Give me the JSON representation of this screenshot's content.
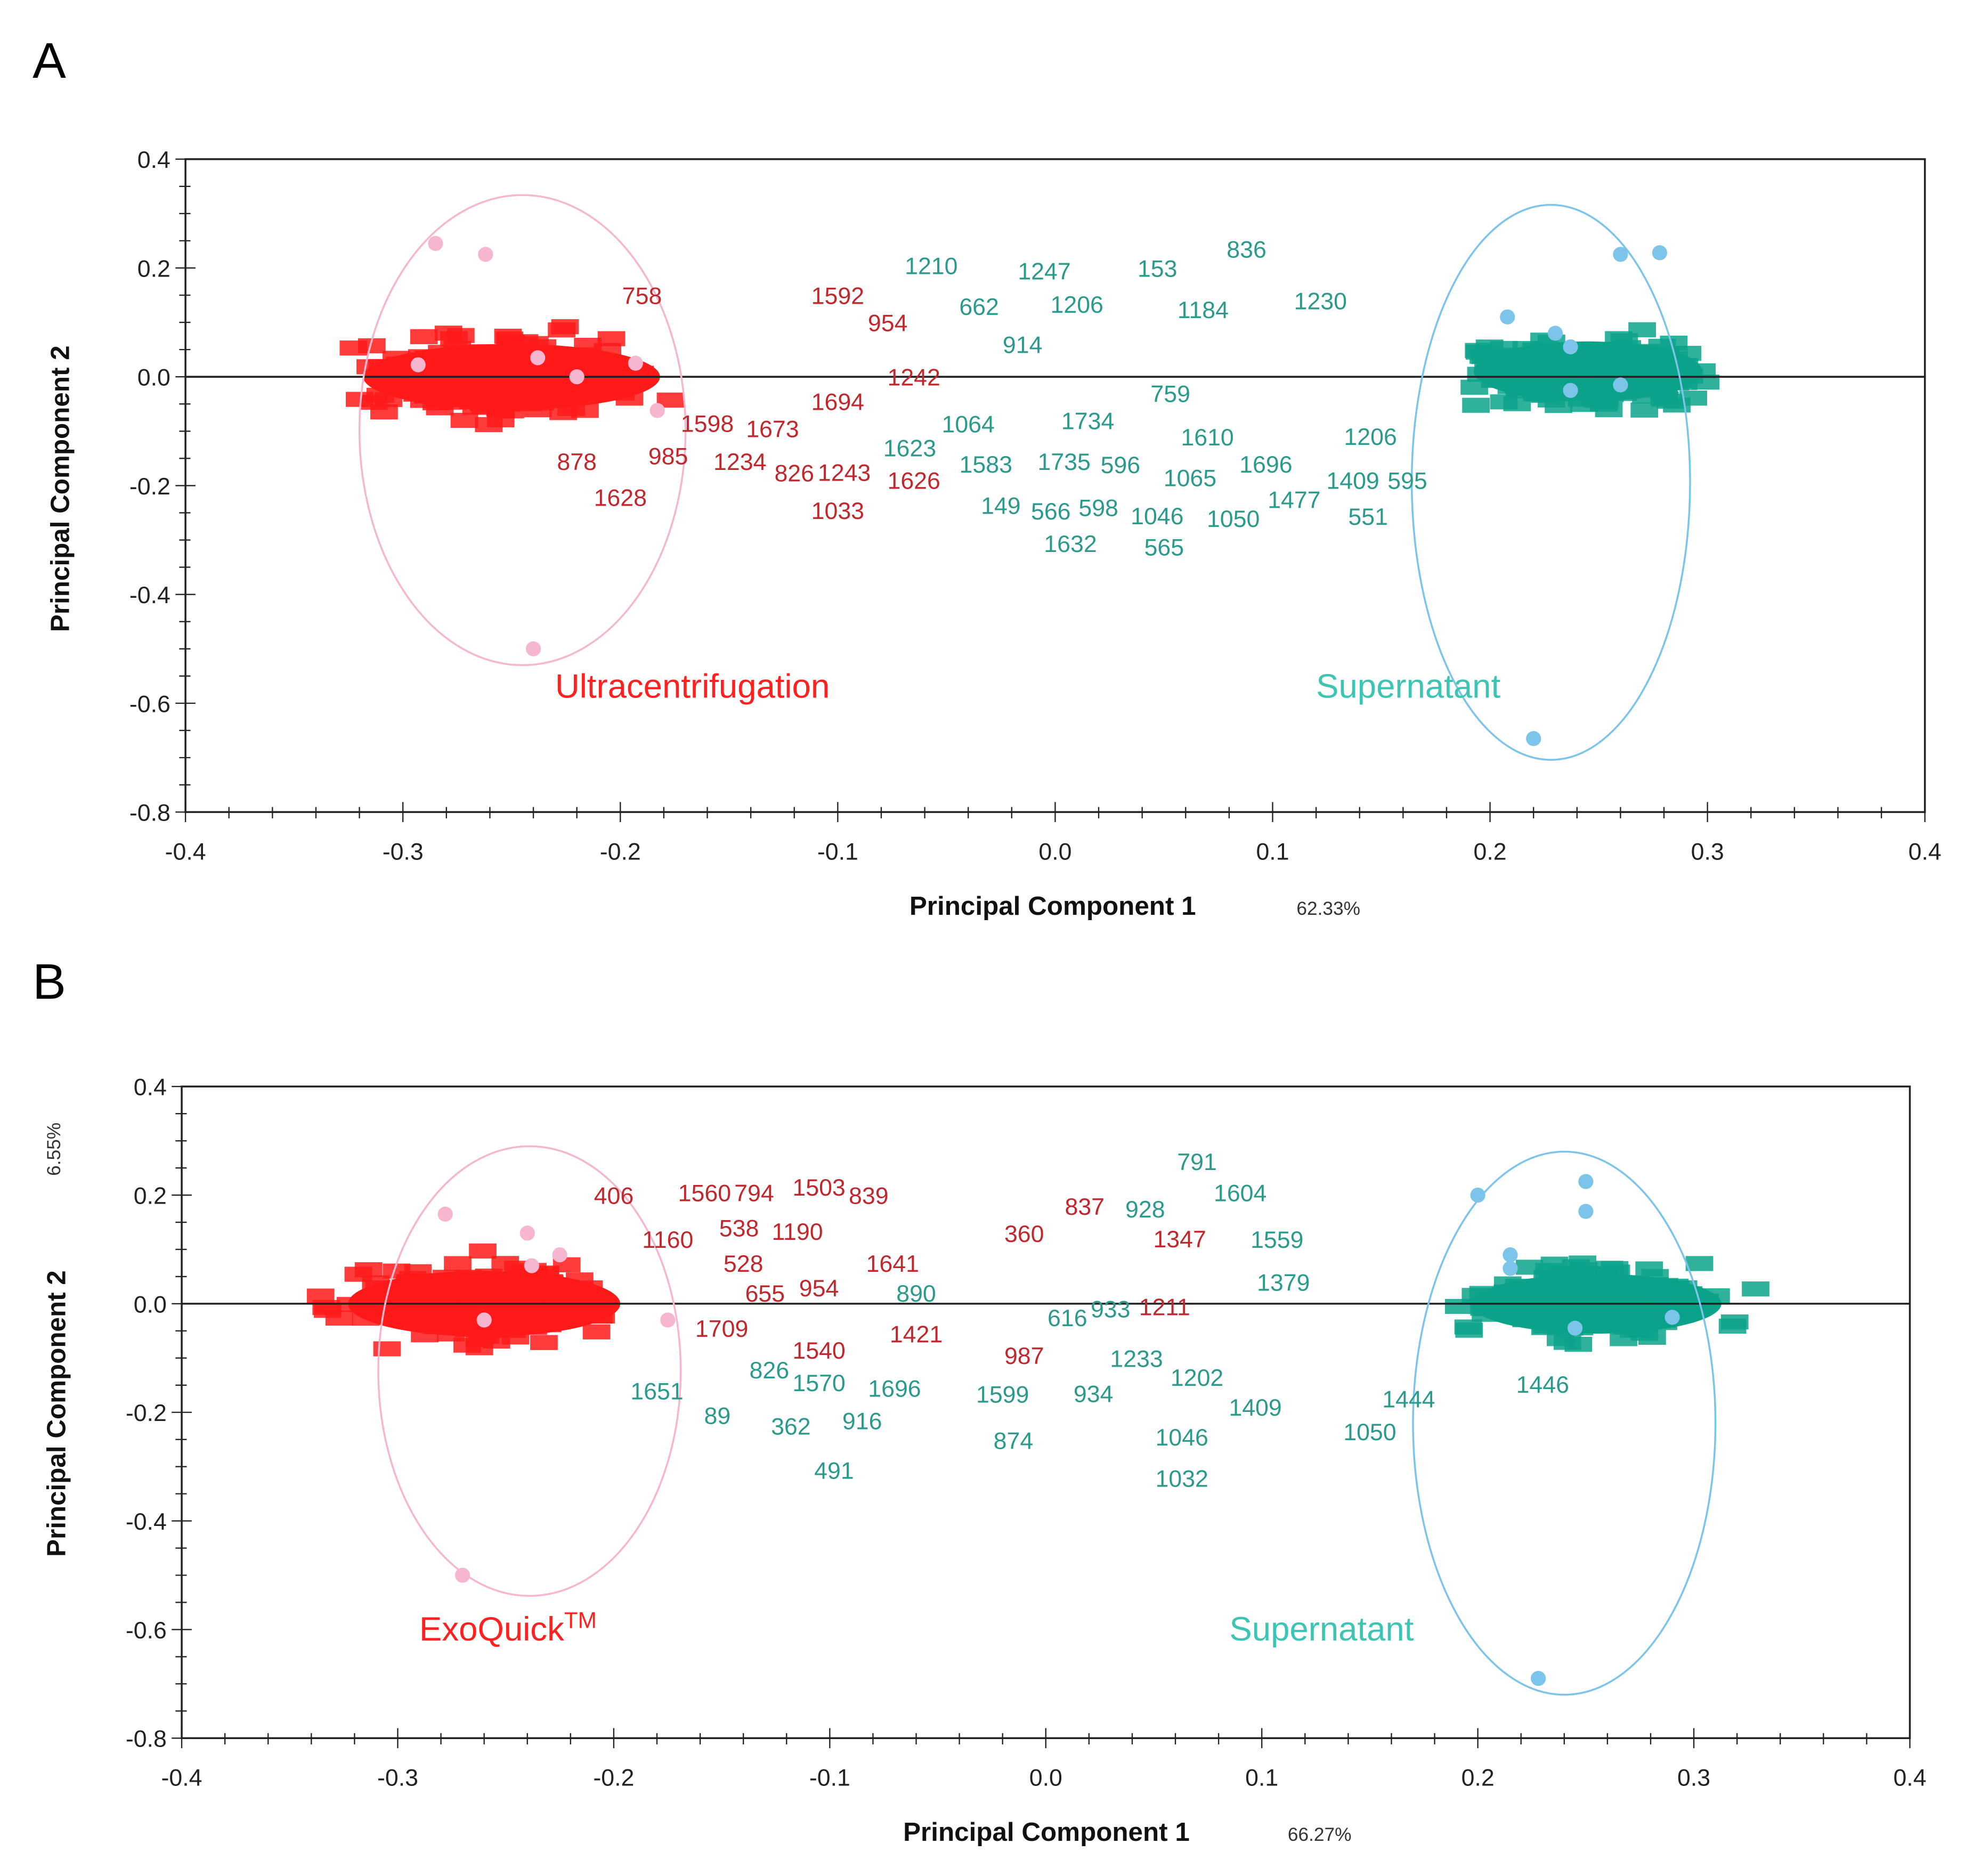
{
  "colors": {
    "red_cloud": "#ff1a1a",
    "red_label": "#c0282d",
    "teal_cloud": "#0aa38a",
    "teal_label": "#2b9a8c",
    "pink": "#f7b6cf",
    "blue": "#7cc4ea",
    "red_text": "#ff2020",
    "teal_text": "#3cc4b4"
  },
  "chart_data": [
    {
      "type": "scatter",
      "panel": "A",
      "xlabel": "Principal Component 1",
      "xlabel_pct": "62.33%",
      "ylabel": "Principal Component 2",
      "ylabel_pct": "",
      "xlim": [
        -0.4,
        0.4
      ],
      "ylim": [
        -0.8,
        0.4
      ],
      "xticks": [
        "-0.4",
        "-0.3",
        "-0.2",
        "-0.1",
        "0.0",
        "0.1",
        "0.2",
        "0.3",
        "0.4"
      ],
      "yticks": [
        "0.4",
        "0.2",
        "0.0",
        "-0.2",
        "-0.4",
        "-0.6",
        "-0.8"
      ],
      "groups": [
        {
          "name": "Ultracentrifugation",
          "color": "red",
          "cloud": {
            "cx": -0.25,
            "cy": 0.0,
            "sx": 0.065,
            "sy": 0.11
          },
          "ellipse": {
            "cx": -0.245,
            "cy": -0.098,
            "rx": 0.075,
            "ry": 0.432
          },
          "samples": [
            [
              -0.285,
              0.245
            ],
            [
              -0.262,
              0.225
            ],
            [
              -0.293,
              0.022
            ],
            [
              -0.238,
              0.035
            ],
            [
              -0.22,
              0.0
            ],
            [
              -0.193,
              0.025
            ],
            [
              -0.183,
              -0.062
            ],
            [
              -0.24,
              -0.5
            ]
          ],
          "label_pos": [
            -0.23,
            -0.59
          ]
        },
        {
          "name": "Supernatant",
          "color": "teal",
          "cloud": {
            "cx": 0.245,
            "cy": 0.01,
            "sx": 0.05,
            "sy": 0.1
          },
          "ellipse": {
            "cx": 0.228,
            "cy": -0.194,
            "rx": 0.064,
            "ry": 0.51
          },
          "samples": [
            [
              0.26,
              0.225
            ],
            [
              0.278,
              0.228
            ],
            [
              0.208,
              0.11
            ],
            [
              0.23,
              0.08
            ],
            [
              0.237,
              0.055
            ],
            [
              0.237,
              -0.025
            ],
            [
              0.26,
              -0.015
            ],
            [
              0.22,
              -0.665
            ]
          ],
          "label_pos": [
            0.12,
            -0.59
          ]
        }
      ],
      "points": [
        {
          "id": "758",
          "x": -0.19,
          "y": 0.15,
          "g": "red"
        },
        {
          "id": "1592",
          "x": -0.1,
          "y": 0.15,
          "g": "red"
        },
        {
          "id": "954",
          "x": -0.077,
          "y": 0.1,
          "g": "red"
        },
        {
          "id": "1598",
          "x": -0.16,
          "y": -0.085,
          "g": "red"
        },
        {
          "id": "1673",
          "x": -0.13,
          "y": -0.095,
          "g": "red"
        },
        {
          "id": "826",
          "x": -0.12,
          "y": -0.13,
          "g": "red"
        },
        {
          "id": "1234",
          "x": -0.145,
          "y": -0.155,
          "g": "red"
        },
        {
          "id": "985",
          "x": -0.178,
          "y": -0.145,
          "g": "red"
        },
        {
          "id": "878",
          "x": -0.22,
          "y": -0.155,
          "g": "red"
        },
        {
          "id": "1628",
          "x": -0.2,
          "y": -0.175,
          "g": "red"
        },
        {
          "id": "1243",
          "x": -0.097,
          "y": -0.175,
          "g": "red"
        },
        {
          "id": "1033",
          "x": -0.1,
          "y": -0.245,
          "g": "red"
        },
        {
          "id": "1626",
          "x": -0.065,
          "y": -0.19,
          "g": "red"
        },
        {
          "id": "1242",
          "x": -0.065,
          "y": 0.0,
          "g": "red"
        },
        {
          "id": "1694",
          "x": -0.1,
          "y": -0.045,
          "g": "red"
        },
        {
          "id": "1210",
          "x": -0.057,
          "y": 0.205,
          "g": "teal"
        },
        {
          "id": "1247",
          "x": -0.005,
          "y": 0.195,
          "g": "teal"
        },
        {
          "id": "1206",
          "x": 0.01,
          "y": 0.18,
          "g": "teal"
        },
        {
          "id": "153",
          "x": 0.047,
          "y": 0.2,
          "g": "teal"
        },
        {
          "id": "1184",
          "x": 0.068,
          "y": 0.17,
          "g": "teal"
        },
        {
          "id": "836",
          "x": 0.088,
          "y": 0.235,
          "g": "teal"
        },
        {
          "id": "662",
          "x": -0.035,
          "y": 0.13,
          "g": "teal"
        },
        {
          "id": "914",
          "x": -0.015,
          "y": 0.06,
          "g": "teal"
        },
        {
          "id": "1064",
          "x": -0.04,
          "y": -0.04,
          "g": "teal"
        },
        {
          "id": "1734",
          "x": 0.015,
          "y": -0.08,
          "g": "teal"
        },
        {
          "id": "596",
          "x": 0.03,
          "y": -0.115,
          "g": "teal"
        },
        {
          "id": "1623",
          "x": -0.045,
          "y": -0.13,
          "g": "teal"
        },
        {
          "id": "1735",
          "x": 0.026,
          "y": -0.155,
          "g": "teal"
        },
        {
          "id": "1583",
          "x": -0.01,
          "y": -0.16,
          "g": "teal"
        },
        {
          "id": "149",
          "x": -0.025,
          "y": -0.19,
          "g": "teal"
        },
        {
          "id": "566",
          "x": -0.002,
          "y": -0.2,
          "g": "teal"
        },
        {
          "id": "598",
          "x": -0.002,
          "y": -0.24,
          "g": "teal"
        },
        {
          "id": "1632",
          "x": 0.007,
          "y": -0.26,
          "g": "teal"
        },
        {
          "id": "1046",
          "x": 0.025,
          "y": -0.255,
          "g": "teal"
        },
        {
          "id": "1050",
          "x": 0.06,
          "y": -0.26,
          "g": "teal"
        },
        {
          "id": "1610",
          "x": 0.07,
          "y": -0.11,
          "g": "teal"
        },
        {
          "id": "1065",
          "x": 0.062,
          "y": -0.185,
          "g": "teal"
        },
        {
          "id": "1696",
          "x": 0.075,
          "y": -0.16,
          "g": "teal"
        },
        {
          "id": "565",
          "x": 0.072,
          "y": -0.22,
          "g": "teal"
        },
        {
          "id": "1477",
          "x": 0.088,
          "y": -0.225,
          "g": "teal"
        },
        {
          "id": "1409",
          "x": 0.115,
          "y": -0.19,
          "g": "teal"
        },
        {
          "id": "551",
          "x": 0.122,
          "y": -0.21,
          "g": "teal"
        },
        {
          "id": "595",
          "x": 0.162,
          "y": -0.19,
          "g": "teal"
        },
        {
          "id": "1206",
          "x": 0.145,
          "y": -0.155,
          "g": "teal"
        },
        {
          "id": "759",
          "x": 0.053,
          "y": -0.03,
          "g": "teal"
        },
        {
          "id": "1230",
          "x": 0.122,
          "y": 0.14,
          "g": "teal"
        }
      ]
    },
    {
      "type": "scatter",
      "panel": "B",
      "xlabel": "Principal Component 1",
      "xlabel_pct": "66.27%",
      "ylabel": "Principal Component 2",
      "ylabel_pct": "6.55%",
      "xlim": [
        -0.4,
        0.4
      ],
      "ylim": [
        -0.8,
        0.4
      ],
      "xticks": [
        "-0.4",
        "-0.3",
        "-0.2",
        "-0.1",
        "0.0",
        "0.1",
        "0.2",
        "0.3",
        "0.4"
      ],
      "yticks": [
        "0.4",
        "0.2",
        "0.0",
        "-0.2",
        "-0.4",
        "-0.6",
        "-0.8"
      ],
      "groups": [
        {
          "name": "ExoQuick",
          "name_sup": "TM",
          "color": "red",
          "cloud": {
            "cx": -0.26,
            "cy": 0.0,
            "sx": 0.06,
            "sy": 0.11
          },
          "ellipse": {
            "cx": -0.239,
            "cy": -0.124,
            "rx": 0.07,
            "ry": 0.414
          },
          "samples": [
            [
              -0.278,
              0.165
            ],
            [
              -0.24,
              0.13
            ],
            [
              -0.225,
              0.09
            ],
            [
              -0.238,
              0.07
            ],
            [
              -0.26,
              -0.03
            ],
            [
              -0.175,
              -0.03
            ],
            [
              -0.27,
              -0.5
            ]
          ],
          "label_pos": [
            -0.29,
            -0.62
          ]
        },
        {
          "name": "Supernatant",
          "color": "teal",
          "cloud": {
            "cx": 0.255,
            "cy": 0.0,
            "sx": 0.055,
            "sy": 0.1
          },
          "ellipse": {
            "cx": 0.24,
            "cy": -0.22,
            "rx": 0.07,
            "ry": 0.5
          },
          "samples": [
            [
              0.2,
              0.2
            ],
            [
              0.25,
              0.225
            ],
            [
              0.25,
              0.17
            ],
            [
              0.215,
              0.09
            ],
            [
              0.215,
              0.065
            ],
            [
              0.245,
              -0.045
            ],
            [
              0.29,
              -0.025
            ],
            [
              0.228,
              -0.69
            ]
          ],
          "label_pos": [
            0.085,
            -0.62
          ]
        }
      ],
      "points": [
        {
          "id": "406",
          "x": -0.2,
          "y": 0.2,
          "g": "red"
        },
        {
          "id": "1560",
          "x": -0.18,
          "y": 0.205,
          "g": "red"
        },
        {
          "id": "1160",
          "x": -0.175,
          "y": 0.165,
          "g": "red"
        },
        {
          "id": "794",
          "x": -0.135,
          "y": 0.205,
          "g": "red"
        },
        {
          "id": "1503",
          "x": -0.105,
          "y": 0.215,
          "g": "red"
        },
        {
          "id": "839",
          "x": -0.082,
          "y": 0.2,
          "g": "red"
        },
        {
          "id": "1190",
          "x": -0.115,
          "y": 0.18,
          "g": "red"
        },
        {
          "id": "538",
          "x": -0.142,
          "y": 0.14,
          "g": "red"
        },
        {
          "id": "528",
          "x": -0.14,
          "y": 0.075,
          "g": "red"
        },
        {
          "id": "655",
          "x": -0.13,
          "y": 0.02,
          "g": "red"
        },
        {
          "id": "954",
          "x": -0.105,
          "y": 0.03,
          "g": "red"
        },
        {
          "id": "1709",
          "x": -0.15,
          "y": -0.045,
          "g": "red"
        },
        {
          "id": "1540",
          "x": -0.105,
          "y": -0.085,
          "g": "red"
        },
        {
          "id": "1421",
          "x": -0.06,
          "y": -0.055,
          "g": "red"
        },
        {
          "id": "837",
          "x": 0.018,
          "y": 0.18,
          "g": "red"
        },
        {
          "id": "1211",
          "x": 0.055,
          "y": -0.005,
          "g": "red"
        },
        {
          "id": "987",
          "x": -0.01,
          "y": -0.095,
          "g": "red"
        },
        {
          "id": "1347",
          "x": 0.062,
          "y": 0.12,
          "g": "red"
        },
        {
          "id": "360",
          "x": -0.01,
          "y": 0.13,
          "g": "red"
        },
        {
          "id": "1641",
          "x": -0.115,
          "y": 0.075,
          "g": "red"
        },
        {
          "id": "826",
          "x": -0.128,
          "y": -0.075,
          "g": "teal"
        },
        {
          "id": "1604",
          "x": 0.09,
          "y": 0.205,
          "g": "teal"
        },
        {
          "id": "928",
          "x": 0.046,
          "y": 0.175,
          "g": "teal"
        },
        {
          "id": "1559",
          "x": 0.085,
          "y": 0.165,
          "g": "teal"
        },
        {
          "id": "791",
          "x": 0.07,
          "y": 0.17,
          "g": "teal"
        },
        {
          "id": "890",
          "x": -0.06,
          "y": 0.02,
          "g": "teal"
        },
        {
          "id": "1599",
          "x": -0.02,
          "y": -0.12,
          "g": "teal"
        },
        {
          "id": "934",
          "x": 0.0,
          "y": -0.165,
          "g": "teal"
        },
        {
          "id": "1696",
          "x": -0.07,
          "y": -0.155,
          "g": "teal"
        },
        {
          "id": "916",
          "x": -0.085,
          "y": -0.215,
          "g": "teal"
        },
        {
          "id": "491",
          "x": -0.098,
          "y": -0.26,
          "g": "teal"
        },
        {
          "id": "362",
          "x": -0.118,
          "y": -0.225,
          "g": "teal"
        },
        {
          "id": "89",
          "x": -0.13,
          "y": -0.205,
          "g": "teal"
        },
        {
          "id": "1651",
          "x": -0.18,
          "y": -0.16,
          "g": "teal"
        },
        {
          "id": "1570",
          "x": -0.105,
          "y": -0.145,
          "g": "teal"
        },
        {
          "id": "874",
          "x": -0.015,
          "y": -0.205,
          "g": "teal"
        },
        {
          "id": "1233",
          "x": 0.042,
          "y": -0.1,
          "g": "teal"
        },
        {
          "id": "1202",
          "x": 0.07,
          "y": -0.135,
          "g": "teal"
        },
        {
          "id": "1409",
          "x": 0.097,
          "y": -0.19,
          "g": "teal"
        },
        {
          "id": "1046",
          "x": 0.063,
          "y": -0.245,
          "g": "teal"
        },
        {
          "id": "1032",
          "x": 0.063,
          "y": -0.275,
          "g": "teal"
        },
        {
          "id": "1050",
          "x": 0.15,
          "y": -0.235,
          "g": "teal"
        },
        {
          "id": "1444",
          "x": 0.168,
          "y": -0.175,
          "g": "teal"
        },
        {
          "id": "1446",
          "x": 0.23,
          "y": -0.148,
          "g": "teal"
        },
        {
          "id": "933",
          "x": 0.052,
          "y": -0.055,
          "g": "teal"
        },
        {
          "id": "1379",
          "x": 0.11,
          "y": 0.04,
          "g": "teal"
        },
        {
          "id": "616",
          "x": 0.01,
          "y": -0.025,
          "g": "teal"
        }
      ]
    }
  ]
}
